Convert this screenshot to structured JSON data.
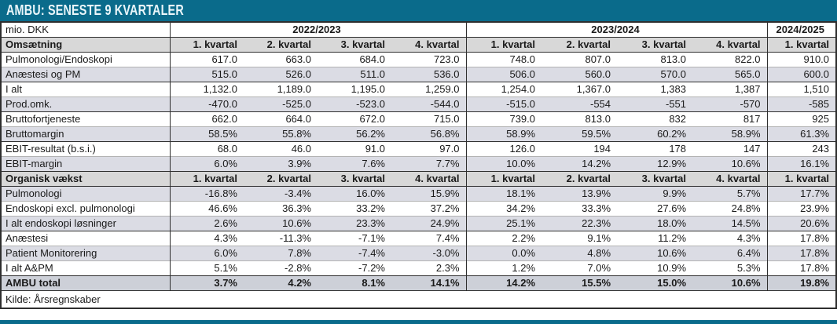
{
  "header": {
    "title": "AMBU: SENESTE 9 KVARTALER"
  },
  "colors": {
    "accent_teal": "#0a6b8b",
    "section_header_bg": "#d8d8d8",
    "stripe_bg": "#dbdce4",
    "total_row_bg": "#cdd0d8",
    "title_text": "#eaf6fa",
    "border_dark": "#2e2e2e"
  },
  "chart_data": {
    "type": "table",
    "title": "AMBU: SENESTE 9 KVARTALER",
    "unit": "mio. DKK",
    "source": "Kilde: Årsregnskaber",
    "column_groups": [
      {
        "label": "2022/2023",
        "span": 4
      },
      {
        "label": "2023/2024",
        "span": 4
      },
      {
        "label": "2024/2025",
        "span": 1
      }
    ],
    "columns": [
      "1. kvartal",
      "2. kvartal",
      "3. kvartal",
      "4. kvartal",
      "1. kvartal",
      "2. kvartal",
      "3. kvartal",
      "4. kvartal",
      "1. kvartal"
    ],
    "sections": [
      {
        "name": "Omsætning",
        "rows": [
          {
            "label": "Pulmonologi/Endoskopi",
            "values": [
              "617.0",
              "663.0",
              "684.0",
              "723.0",
              "748.0",
              "807.0",
              "813.0",
              "822.0",
              "910.0"
            ]
          },
          {
            "label": "Anæstesi og PM",
            "values": [
              "515.0",
              "526.0",
              "511.0",
              "536.0",
              "506.0",
              "560.0",
              "570.0",
              "565.0",
              "600.0"
            ]
          },
          {
            "label": "I alt",
            "values": [
              "1,132.0",
              "1,189.0",
              "1,195.0",
              "1,259.0",
              "1,254.0",
              "1,367.0",
              "1,383",
              "1,387",
              "1,510"
            ]
          },
          {
            "label": "Prod.omk.",
            "values": [
              "-470.0",
              "-525.0",
              "-523.0",
              "-544.0",
              "-515.0",
              "-554",
              "-551",
              "-570",
              "-585"
            ]
          },
          {
            "label": "Bruttofortjeneste",
            "values": [
              "662.0",
              "664.0",
              "672.0",
              "715.0",
              "739.0",
              "813.0",
              "832",
              "817",
              "925"
            ]
          },
          {
            "label": "Bruttomargin",
            "values": [
              "58.5%",
              "55.8%",
              "56.2%",
              "56.8%",
              "58.9%",
              "59.5%",
              "60.2%",
              "58.9%",
              "61.3%"
            ]
          },
          {
            "label": "EBIT-resultat (b.s.i.)",
            "values": [
              "68.0",
              "46.0",
              "91.0",
              "97.0",
              "126.0",
              "194",
              "178",
              "147",
              "243"
            ]
          },
          {
            "label": "EBIT-margin",
            "values": [
              "6.0%",
              "3.9%",
              "7.6%",
              "7.7%",
              "10.0%",
              "14.2%",
              "12.9%",
              "10.6%",
              "16.1%"
            ]
          }
        ]
      },
      {
        "name": "Organisk vækst",
        "rows": [
          {
            "label": "Pulmonologi",
            "values": [
              "-16.8%",
              "-3.4%",
              "16.0%",
              "15.9%",
              "18.1%",
              "13.9%",
              "9.9%",
              "5.7%",
              "17.7%"
            ]
          },
          {
            "label": "Endoskopi excl. pulmonologi",
            "values": [
              "46.6%",
              "36.3%",
              "33.2%",
              "37.2%",
              "34.2%",
              "33.3%",
              "27.6%",
              "24.8%",
              "23.9%"
            ]
          },
          {
            "label": "I alt endoskopi løsninger",
            "values": [
              "2.6%",
              "10.6%",
              "23.3%",
              "24.9%",
              "25.1%",
              "22.3%",
              "18.0%",
              "14.5%",
              "20.6%"
            ]
          },
          {
            "label": "Anæstesi",
            "values": [
              "4.3%",
              "-11.3%",
              "-7.1%",
              "7.4%",
              "2.2%",
              "9.1%",
              "11.2%",
              "4.3%",
              "17.8%"
            ]
          },
          {
            "label": "Patient Monitorering",
            "values": [
              "6.0%",
              "7.8%",
              "-7.4%",
              "-3.0%",
              "0.0%",
              "4.8%",
              "10.6%",
              "6.4%",
              "17.8%"
            ]
          },
          {
            "label": "I alt A&PM",
            "values": [
              "5.1%",
              "-2.8%",
              "-7.2%",
              "2.3%",
              "1.2%",
              "7.0%",
              "10.9%",
              "5.3%",
              "17.8%"
            ]
          },
          {
            "label": "AMBU total",
            "values": [
              "3.7%",
              "4.2%",
              "8.1%",
              "14.1%",
              "14.2%",
              "15.5%",
              "15.0%",
              "10.6%",
              "19.8%"
            ]
          }
        ]
      }
    ]
  }
}
